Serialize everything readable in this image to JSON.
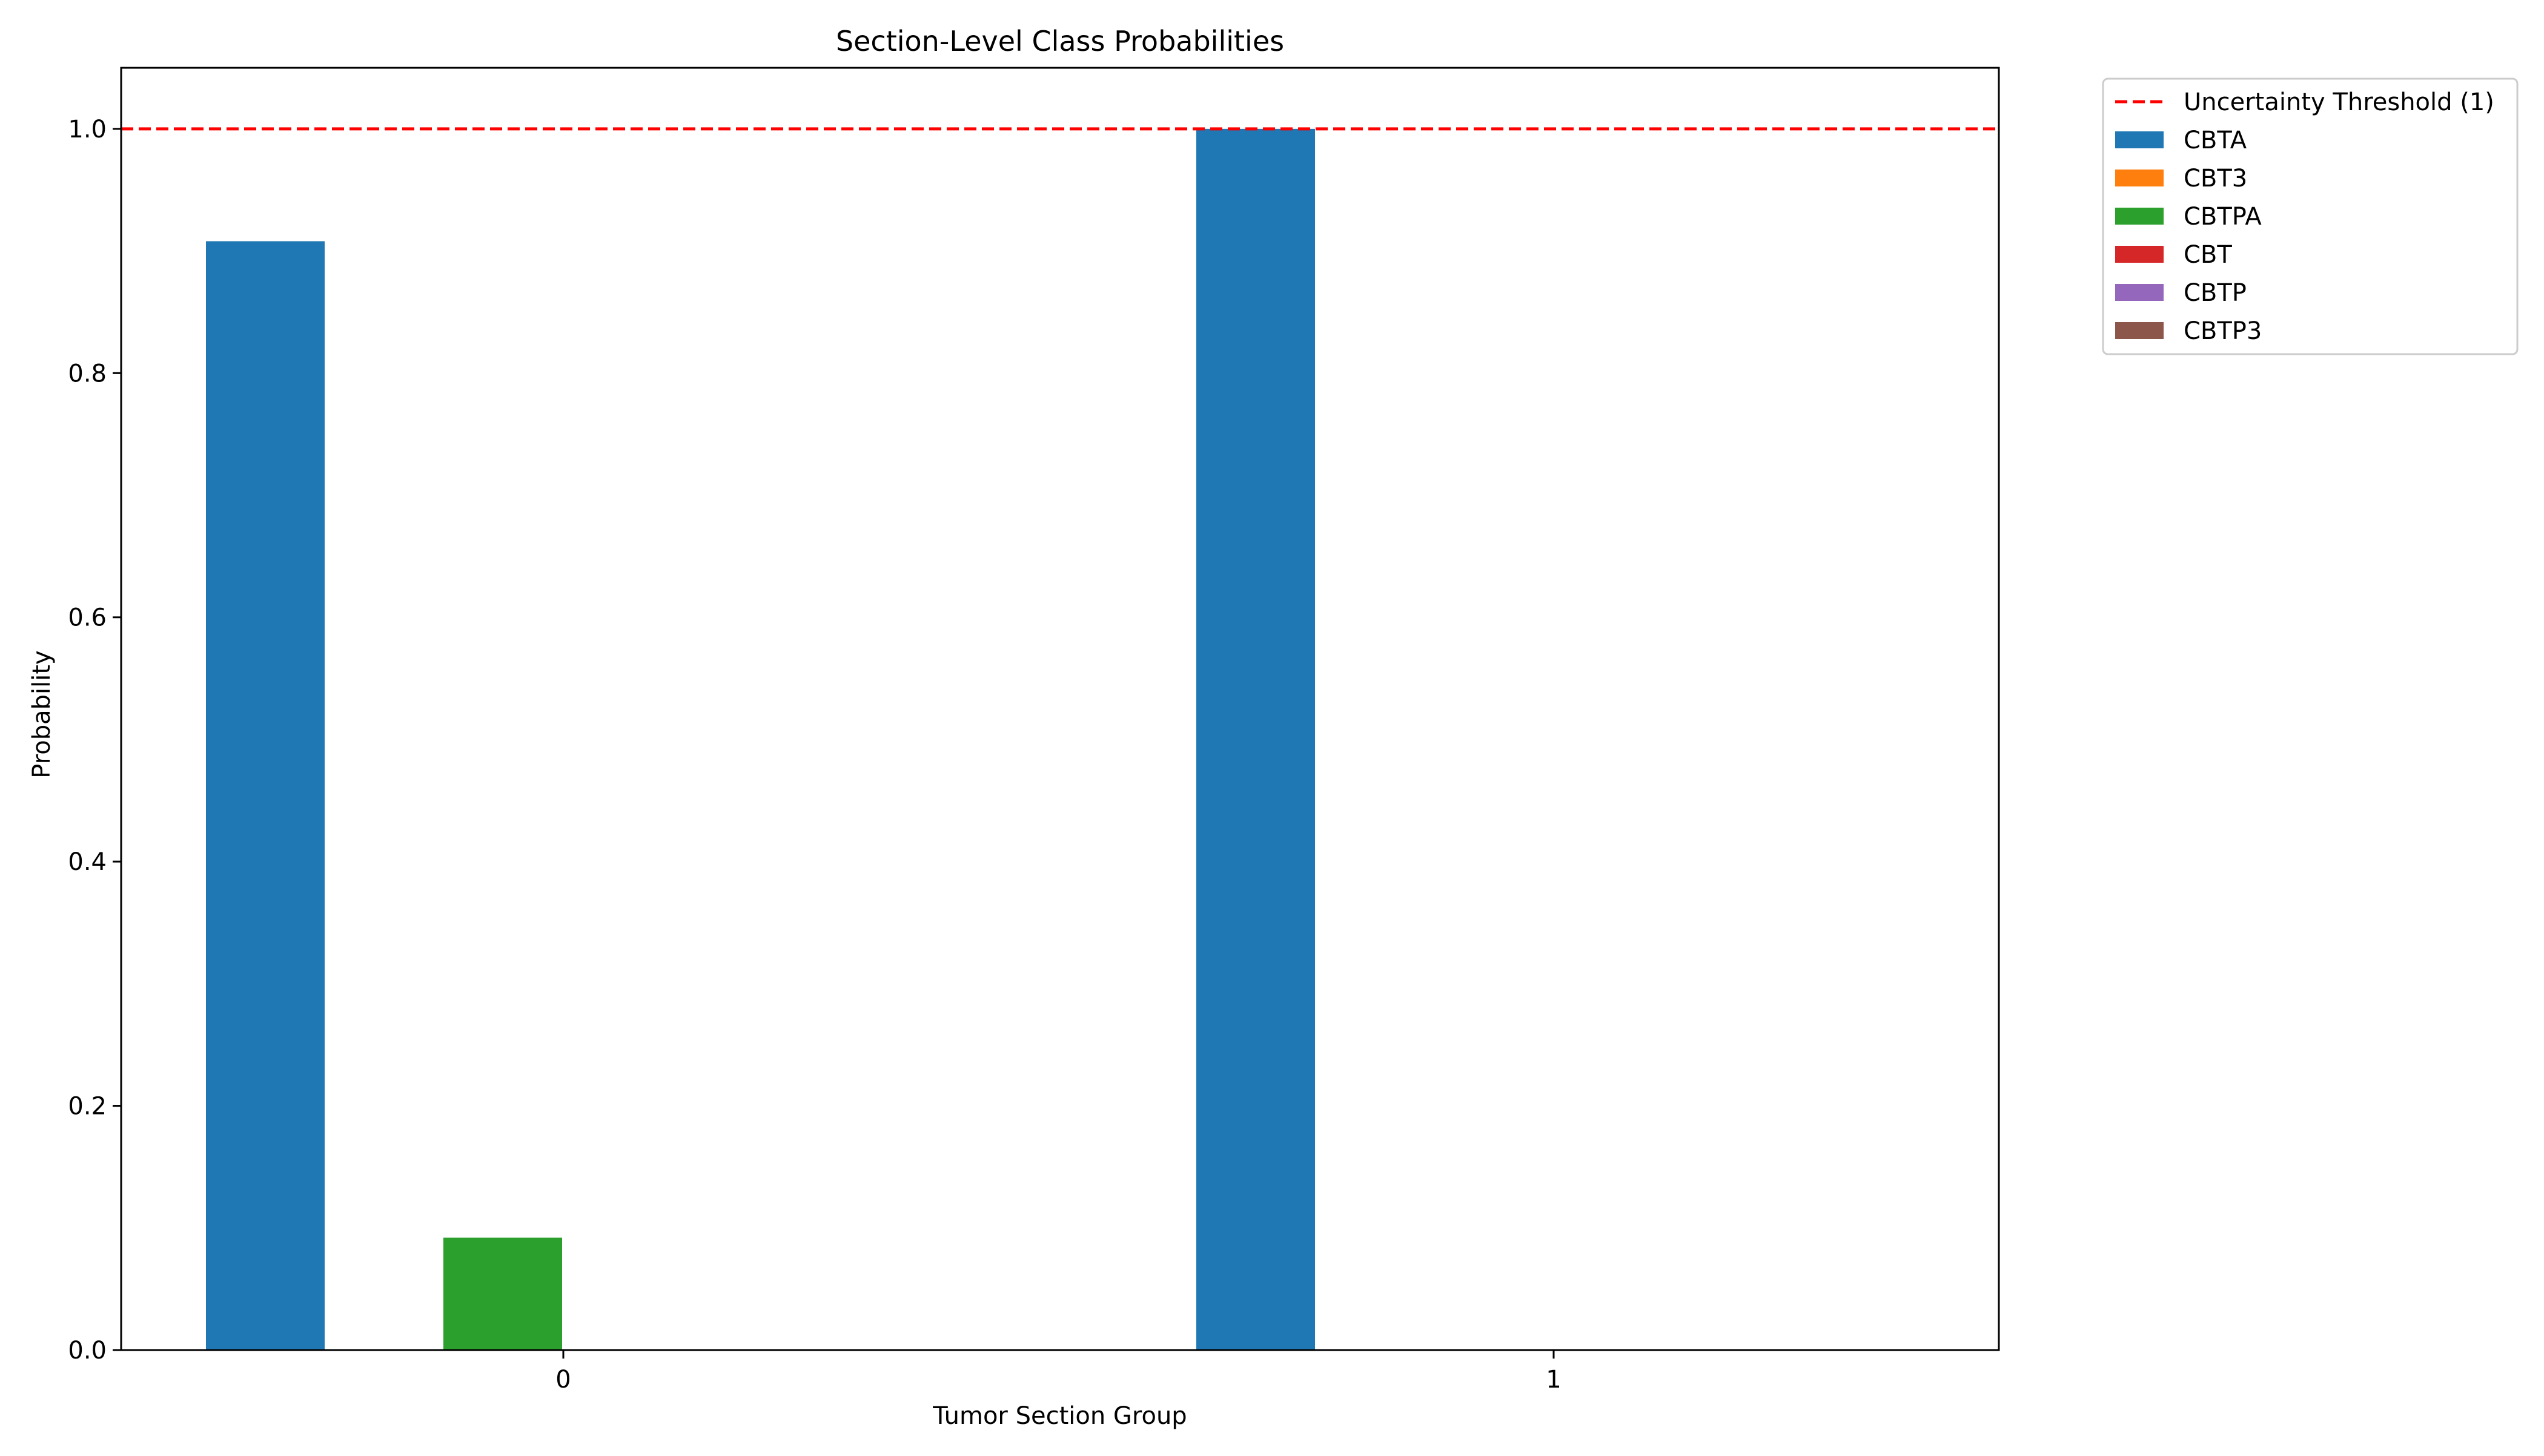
{
  "chart_data": {
    "type": "bar",
    "title": "Section-Level Class Probabilities",
    "xlabel": "Tumor Section Group",
    "ylabel": "Probability",
    "categories": [
      "0",
      "1"
    ],
    "ylim": [
      0,
      1.05
    ],
    "yticks": [
      "0.0",
      "0.2",
      "0.4",
      "0.6",
      "0.8",
      "1.0"
    ],
    "grid": false,
    "legend_position": "outside top-right",
    "threshold": {
      "label": "Uncertainty Threshold (1)",
      "value": 1.0,
      "color": "#ff0000",
      "style": "dashed"
    },
    "series": [
      {
        "name": "CBTA",
        "color": "#1f77b4",
        "values": [
          0.908,
          1.0
        ]
      },
      {
        "name": "CBT3",
        "color": "#ff7f0e",
        "values": [
          0.0,
          0.0
        ]
      },
      {
        "name": "CBTPA",
        "color": "#2ca02c",
        "values": [
          0.092,
          0.0
        ]
      },
      {
        "name": "CBT",
        "color": "#d62728",
        "values": [
          0.0,
          0.0
        ]
      },
      {
        "name": "CBTP",
        "color": "#9467bd",
        "values": [
          0.0,
          0.0
        ]
      },
      {
        "name": "CBTP3",
        "color": "#8c564b",
        "values": [
          0.0,
          0.0
        ]
      }
    ]
  }
}
